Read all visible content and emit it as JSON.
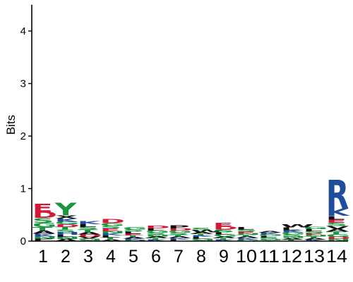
{
  "chart_data": {
    "type": "sequence-logo",
    "title": "",
    "xlabel": "",
    "ylabel": "Bits",
    "ylim": [
      0,
      4.5
    ],
    "yticks": [
      0,
      1,
      2,
      3,
      4
    ],
    "positions": [
      "1",
      "2",
      "3",
      "4",
      "5",
      "6",
      "7",
      "8",
      "9",
      "10",
      "11",
      "12",
      "13",
      "14"
    ],
    "palette": {
      "acidic": "#d11a37",
      "basic": "#1f4e9c",
      "polar": "#1a9640",
      "hydrophobic": "#111111",
      "neutral": "#8e44ad"
    },
    "columns": [
      {
        "position": "1",
        "total_bits": 0.72,
        "stack": [
          {
            "letter": "E",
            "bits": 0.16
          },
          {
            "letter": "D",
            "bits": 0.12
          },
          {
            "letter": "S",
            "bits": 0.09
          },
          {
            "letter": "G",
            "bits": 0.08
          },
          {
            "letter": "T",
            "bits": 0.07
          },
          {
            "letter": "A",
            "bits": 0.06
          },
          {
            "letter": "K",
            "bits": 0.05
          },
          {
            "letter": "N",
            "bits": 0.04
          },
          {
            "letter": "P",
            "bits": 0.03
          },
          {
            "letter": "L",
            "bits": 0.02
          }
        ]
      },
      {
        "position": "2",
        "total_bits": 0.73,
        "stack": [
          {
            "letter": "Y",
            "bits": 0.24
          },
          {
            "letter": "H",
            "bits": 0.05
          },
          {
            "letter": "K",
            "bits": 0.06
          },
          {
            "letter": "X",
            "bits": 0.06
          },
          {
            "letter": "S",
            "bits": 0.05
          },
          {
            "letter": "T",
            "bits": 0.05
          },
          {
            "letter": "D",
            "bits": 0.05
          },
          {
            "letter": "G",
            "bits": 0.05
          },
          {
            "letter": "A",
            "bits": 0.04
          },
          {
            "letter": "N",
            "bits": 0.04
          },
          {
            "letter": "L",
            "bits": 0.04
          }
        ]
      },
      {
        "position": "3",
        "total_bits": 0.38,
        "stack": [
          {
            "letter": "T",
            "bits": 0.05
          },
          {
            "letter": "K",
            "bits": 0.06
          },
          {
            "letter": "S",
            "bits": 0.05
          },
          {
            "letter": "L",
            "bits": 0.05
          },
          {
            "letter": "V",
            "bits": 0.04
          },
          {
            "letter": "D",
            "bits": 0.04
          },
          {
            "letter": "A",
            "bits": 0.04
          },
          {
            "letter": "G",
            "bits": 0.03
          },
          {
            "letter": "N",
            "bits": 0.02
          }
        ]
      },
      {
        "position": "4",
        "total_bits": 0.42,
        "stack": [
          {
            "letter": "D",
            "bits": 0.08
          },
          {
            "letter": "E",
            "bits": 0.05
          },
          {
            "letter": "S",
            "bits": 0.05
          },
          {
            "letter": "G",
            "bits": 0.05
          },
          {
            "letter": "T",
            "bits": 0.04
          },
          {
            "letter": "L",
            "bits": 0.04
          },
          {
            "letter": "K",
            "bits": 0.04
          },
          {
            "letter": "A",
            "bits": 0.03
          },
          {
            "letter": "N",
            "bits": 0.04
          }
        ]
      },
      {
        "position": "5",
        "total_bits": 0.26,
        "stack": [
          {
            "letter": "L",
            "bits": 0.04
          },
          {
            "letter": "S",
            "bits": 0.04
          },
          {
            "letter": "G",
            "bits": 0.04
          },
          {
            "letter": "K",
            "bits": 0.03
          },
          {
            "letter": "A",
            "bits": 0.03
          },
          {
            "letter": "T",
            "bits": 0.03
          },
          {
            "letter": "E",
            "bits": 0.03
          },
          {
            "letter": "N",
            "bits": 0.02
          }
        ]
      },
      {
        "position": "6",
        "total_bits": 0.29,
        "stack": [
          {
            "letter": "D",
            "bits": 0.05
          },
          {
            "letter": "S",
            "bits": 0.04
          },
          {
            "letter": "G",
            "bits": 0.04
          },
          {
            "letter": "L",
            "bits": 0.04
          },
          {
            "letter": "K",
            "bits": 0.03
          },
          {
            "letter": "T",
            "bits": 0.03
          },
          {
            "letter": "A",
            "bits": 0.03
          },
          {
            "letter": "N",
            "bits": 0.03
          }
        ]
      },
      {
        "position": "7",
        "total_bits": 0.3,
        "stack": [
          {
            "letter": "P",
            "bits": 0.06
          },
          {
            "letter": "S",
            "bits": 0.04
          },
          {
            "letter": "G",
            "bits": 0.04
          },
          {
            "letter": "D",
            "bits": 0.04
          },
          {
            "letter": "L",
            "bits": 0.03
          },
          {
            "letter": "K",
            "bits": 0.03
          },
          {
            "letter": "A",
            "bits": 0.03
          },
          {
            "letter": "T",
            "bits": 0.03
          }
        ]
      },
      {
        "position": "8",
        "total_bits": 0.25,
        "stack": [
          {
            "letter": "W",
            "bits": 0.04
          },
          {
            "letter": "S",
            "bits": 0.04
          },
          {
            "letter": "G",
            "bits": 0.03
          },
          {
            "letter": "L",
            "bits": 0.03
          },
          {
            "letter": "K",
            "bits": 0.03
          },
          {
            "letter": "T",
            "bits": 0.03
          },
          {
            "letter": "A",
            "bits": 0.03
          },
          {
            "letter": "N",
            "bits": 0.02
          }
        ]
      },
      {
        "position": "9",
        "total_bits": 0.35,
        "stack": [
          {
            "letter": "E",
            "bits": 0.07
          },
          {
            "letter": "D",
            "bits": 0.06
          },
          {
            "letter": "S",
            "bits": 0.05
          },
          {
            "letter": "G",
            "bits": 0.04
          },
          {
            "letter": "L",
            "bits": 0.04
          },
          {
            "letter": "K",
            "bits": 0.03
          },
          {
            "letter": "T",
            "bits": 0.03
          },
          {
            "letter": "A",
            "bits": 0.03
          }
        ]
      },
      {
        "position": "10",
        "total_bits": 0.26,
        "stack": [
          {
            "letter": "S",
            "bits": 0.04
          },
          {
            "letter": "L",
            "bits": 0.04
          },
          {
            "letter": "G",
            "bits": 0.03
          },
          {
            "letter": "K",
            "bits": 0.03
          },
          {
            "letter": "A",
            "bits": 0.03
          },
          {
            "letter": "T",
            "bits": 0.03
          },
          {
            "letter": "N",
            "bits": 0.03
          },
          {
            "letter": "E",
            "bits": 0.03
          }
        ]
      },
      {
        "position": "11",
        "total_bits": 0.2,
        "stack": [
          {
            "letter": "S",
            "bits": 0.03
          },
          {
            "letter": "L",
            "bits": 0.03
          },
          {
            "letter": "G",
            "bits": 0.03
          },
          {
            "letter": "K",
            "bits": 0.03
          },
          {
            "letter": "A",
            "bits": 0.03
          },
          {
            "letter": "T",
            "bits": 0.02
          },
          {
            "letter": "N",
            "bits": 0.02
          }
        ]
      },
      {
        "position": "12",
        "total_bits": 0.33,
        "stack": [
          {
            "letter": "W",
            "bits": 0.06
          },
          {
            "letter": "L",
            "bits": 0.05
          },
          {
            "letter": "S",
            "bits": 0.04
          },
          {
            "letter": "G",
            "bits": 0.04
          },
          {
            "letter": "K",
            "bits": 0.04
          },
          {
            "letter": "T",
            "bits": 0.03
          },
          {
            "letter": "A",
            "bits": 0.03
          },
          {
            "letter": "N",
            "bits": 0.03
          }
        ]
      },
      {
        "position": "13",
        "total_bits": 0.28,
        "stack": [
          {
            "letter": "S",
            "bits": 0.04
          },
          {
            "letter": "L",
            "bits": 0.04
          },
          {
            "letter": "G",
            "bits": 0.04
          },
          {
            "letter": "K",
            "bits": 0.03
          },
          {
            "letter": "A",
            "bits": 0.03
          },
          {
            "letter": "T",
            "bits": 0.03
          },
          {
            "letter": "N",
            "bits": 0.03
          },
          {
            "letter": "E",
            "bits": 0.03
          }
        ]
      },
      {
        "position": "14",
        "total_bits": 1.25,
        "stack": [
          {
            "letter": "R",
            "bits": 0.55
          },
          {
            "letter": "K",
            "bits": 0.14
          },
          {
            "letter": "L",
            "bits": 0.07
          },
          {
            "letter": "V",
            "bits": 0.06
          },
          {
            "letter": "S",
            "bits": 0.06
          },
          {
            "letter": "E",
            "bits": 0.06
          },
          {
            "letter": "G",
            "bits": 0.05
          },
          {
            "letter": "T",
            "bits": 0.05
          },
          {
            "letter": "A",
            "bits": 0.05
          },
          {
            "letter": "N",
            "bits": 0.04
          },
          {
            "letter": "D",
            "bits": 0.04
          }
        ]
      }
    ]
  }
}
